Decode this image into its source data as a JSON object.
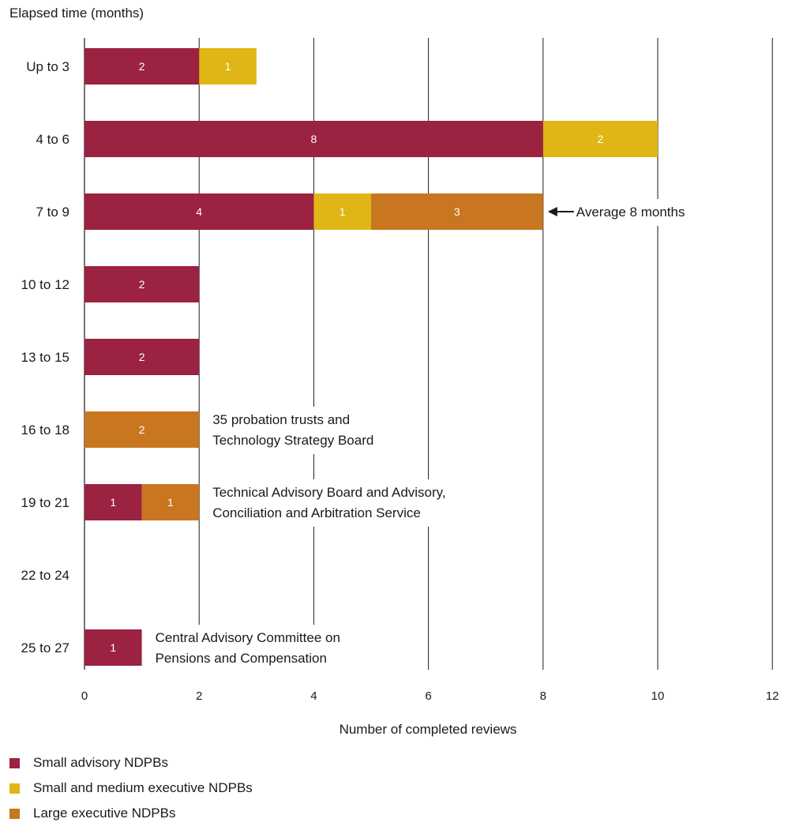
{
  "chart_data": {
    "type": "bar",
    "orientation": "horizontal",
    "stacked": true,
    "y_axis_title": "Elapsed time (months)",
    "xlabel": "Number of completed reviews",
    "xlim": [
      0,
      12
    ],
    "x_ticks": [
      0,
      2,
      4,
      6,
      8,
      10,
      12
    ],
    "grid": true,
    "legend_position": "bottom-left",
    "categories": [
      "Up to 3",
      "4 to 6",
      "7 to 9",
      "10 to 12",
      "13 to 15",
      "16 to 18",
      "19 to 21",
      "22 to 24",
      "25 to 27"
    ],
    "series": [
      {
        "name": "Small advisory NDPBs",
        "color": "#9b2240",
        "values": [
          2,
          8,
          4,
          2,
          2,
          0,
          1,
          0,
          1
        ]
      },
      {
        "name": "Small and medium executive NDPBs",
        "color": "#e0b616",
        "values": [
          1,
          2,
          1,
          0,
          0,
          0,
          0,
          0,
          0
        ]
      },
      {
        "name": "Large executive NDPBs",
        "color": "#c8761f",
        "values": [
          0,
          0,
          3,
          0,
          0,
          2,
          1,
          0,
          0
        ]
      }
    ],
    "annotations": [
      {
        "category": "7 to 9",
        "x_value": 8,
        "arrow": true,
        "lines": [
          "Average 8 months"
        ]
      },
      {
        "category": "16 to 18",
        "x_value": 2,
        "arrow": false,
        "lines": [
          "35 probation trusts and",
          "Technology Strategy Board"
        ]
      },
      {
        "category": "19 to 21",
        "x_value": 2,
        "arrow": false,
        "lines": [
          "Technical Advisory Board and Advisory,",
          "Conciliation and Arbitration Service"
        ]
      },
      {
        "category": "25 to 27",
        "x_value": 1,
        "arrow": false,
        "lines": [
          "Central Advisory Committee on",
          "Pensions and Compensation"
        ]
      }
    ]
  }
}
